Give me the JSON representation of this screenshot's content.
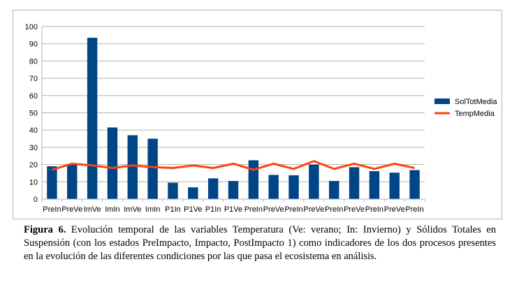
{
  "chart_data": {
    "type": "bar",
    "categories": [
      "PreIn",
      "PreVe",
      "ImVe",
      "ImIn",
      "ImVe",
      "ImIn",
      "P1In",
      "P1Ve",
      "P1In",
      "P1Ve",
      "PreIn",
      "PreVe",
      "PreIn",
      "PreVe",
      "PreIn",
      "PreVe",
      "PreIn",
      "PreVe",
      "PreIn"
    ],
    "series": [
      {
        "name": "SolTotMedia",
        "type": "bar",
        "color": "#004586",
        "values": [
          19,
          20,
          93.5,
          41.5,
          37,
          35,
          9.5,
          6.8,
          12,
          10.5,
          22.5,
          14,
          13.8,
          20,
          10.5,
          18.5,
          16.2,
          15.3,
          16.8
        ]
      },
      {
        "name": "TempMedia",
        "type": "line",
        "color": "#ff420e",
        "values": [
          17,
          20.5,
          19.5,
          18,
          19.5,
          18.5,
          18,
          19.5,
          18,
          20.5,
          17,
          20.5,
          17.5,
          22,
          17.5,
          20.5,
          17.5,
          20.5,
          18
        ]
      }
    ],
    "ylim": [
      0,
      100
    ],
    "yticks": [
      0,
      10,
      20,
      30,
      40,
      50,
      60,
      70,
      80,
      90,
      100
    ],
    "grid": true,
    "legend_position": "right"
  },
  "caption": {
    "prefix": "Figura 6.",
    "text": " Evolución temporal de las variables Temperatura (Ve: verano; In: Invierno) y Sólidos Totales en Suspensión (con los estados PreImpacto, Impacto, PostImpacto 1) como indicadores de los dos procesos presentes en la evolución de las diferentes condiciones por las que pasa el ecosistema en análisis."
  }
}
